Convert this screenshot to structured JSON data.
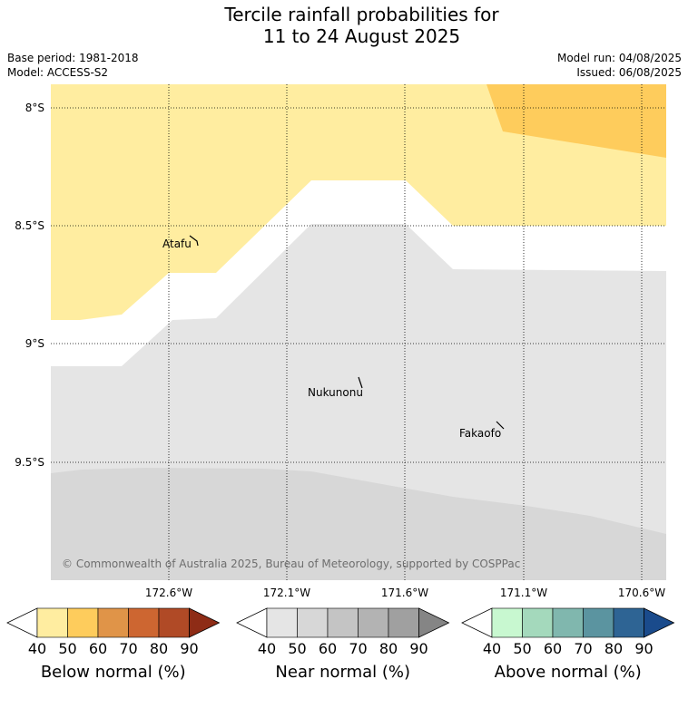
{
  "header": {
    "title_line1": "Tercile rainfall probabilities for",
    "title_line2": "11 to 24 August 2025",
    "base_period": "Base period: 1981-2018",
    "model": "Model: ACCESS-S2",
    "model_run": "Model run: 04/08/2025",
    "issued": "Issued: 06/08/2025"
  },
  "map": {
    "lat_labels": [
      "8°S",
      "8.5°S",
      "9°S",
      "9.5°S"
    ],
    "lon_labels": [
      "172.6°W",
      "172.1°W",
      "171.6°W",
      "171.1°W",
      "170.6°W"
    ],
    "places": [
      {
        "name": "Atafu"
      },
      {
        "name": "Nukunonu"
      },
      {
        "name": "Fakaofo"
      }
    ],
    "copyright": "© Commonwealth of Australia 2025, Bureau of Meteorology, supported by COSPPac"
  },
  "legends": [
    {
      "title": "Below normal (%)",
      "ticks": [
        "40",
        "50",
        "60",
        "70",
        "80",
        "90"
      ],
      "colors": [
        "#ffffff",
        "#ffeda0",
        "#fecc5c",
        "#e09448",
        "#cd6631",
        "#b04a26",
        "#8e2c16"
      ]
    },
    {
      "title": "Near normal (%)",
      "ticks": [
        "40",
        "50",
        "60",
        "70",
        "80",
        "90"
      ],
      "colors": [
        "#ffffff",
        "#e5e5e5",
        "#d7d7d7",
        "#c4c4c4",
        "#b3b3b3",
        "#a0a0a0",
        "#858585"
      ]
    },
    {
      "title": "Above normal (%)",
      "ticks": [
        "40",
        "50",
        "60",
        "70",
        "80",
        "90"
      ],
      "colors": [
        "#ffffff",
        "#c8f8d0",
        "#a4d9bc",
        "#80b7ae",
        "#5b94a0",
        "#2e6494",
        "#1a4b8c"
      ]
    }
  ],
  "colors": {
    "below_50": "#ffeda0",
    "below_60": "#fecc5c",
    "near_40": "#e5e5e5",
    "near_50": "#d7d7d7"
  }
}
